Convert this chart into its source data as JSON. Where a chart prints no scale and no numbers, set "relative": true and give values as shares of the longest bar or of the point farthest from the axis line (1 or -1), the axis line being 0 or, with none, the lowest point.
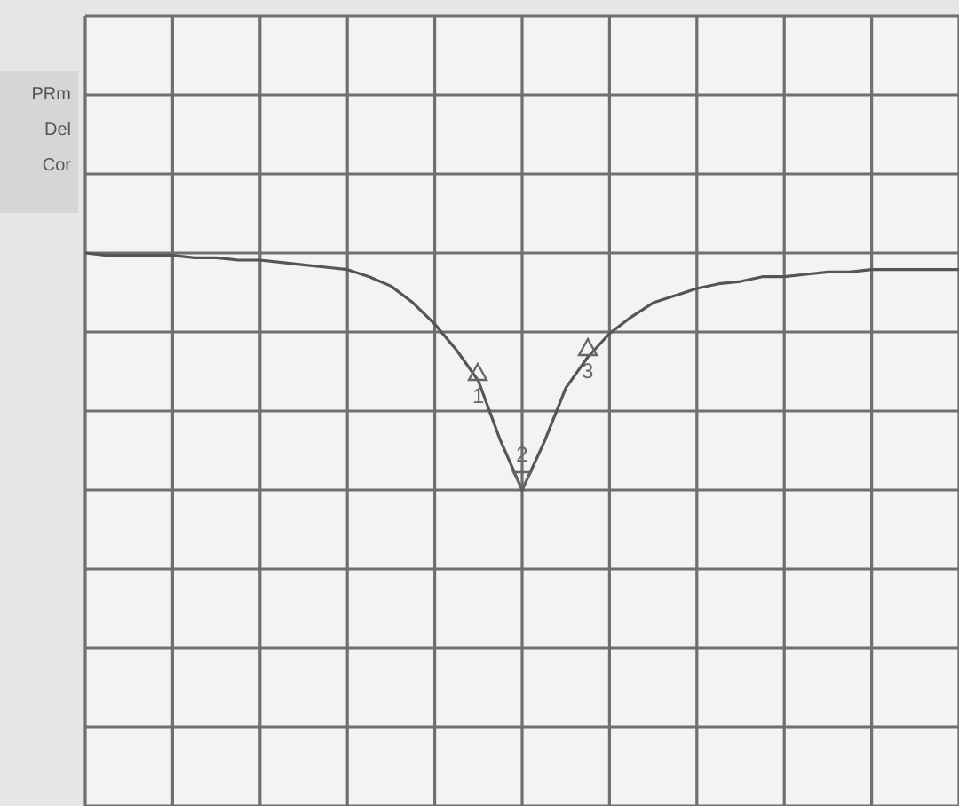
{
  "chart_data": {
    "type": "line",
    "relative": true,
    "grid": true,
    "legend": false,
    "categories": [
      null,
      null,
      null,
      null,
      null,
      null,
      null,
      null,
      null,
      null,
      null,
      null,
      null,
      null,
      null,
      null,
      null,
      null,
      null,
      null,
      null,
      null,
      null,
      null,
      null,
      null,
      null,
      null,
      null,
      null,
      null,
      null,
      null,
      null,
      null,
      null,
      null,
      null,
      null,
      null,
      null
    ],
    "annotations": [
      "PRm",
      "Del",
      "Cor",
      {
        "text": "1",
        "y": 0.46
      },
      {
        "text": "2",
        "y": 0
      },
      {
        "text": "3",
        "y": 0.56
      }
    ],
    "series": [
      {
        "color": "#555555",
        "values": [
          1,
          0.99,
          0.99,
          0.99,
          0.99,
          0.98,
          0.98,
          0.97,
          0.97,
          0.96,
          0.95,
          0.94,
          0.93,
          0.9,
          0.86,
          0.79,
          0.7,
          0.59,
          0.46,
          0.21,
          0,
          0.2,
          0.43,
          0.56,
          0.66,
          0.73,
          0.79,
          0.82,
          0.85,
          0.87,
          0.88,
          0.9,
          0.9,
          0.91,
          0.92,
          0.92,
          0.93,
          0.93,
          0.93,
          0.93,
          0.93
        ]
      }
    ]
  }
}
